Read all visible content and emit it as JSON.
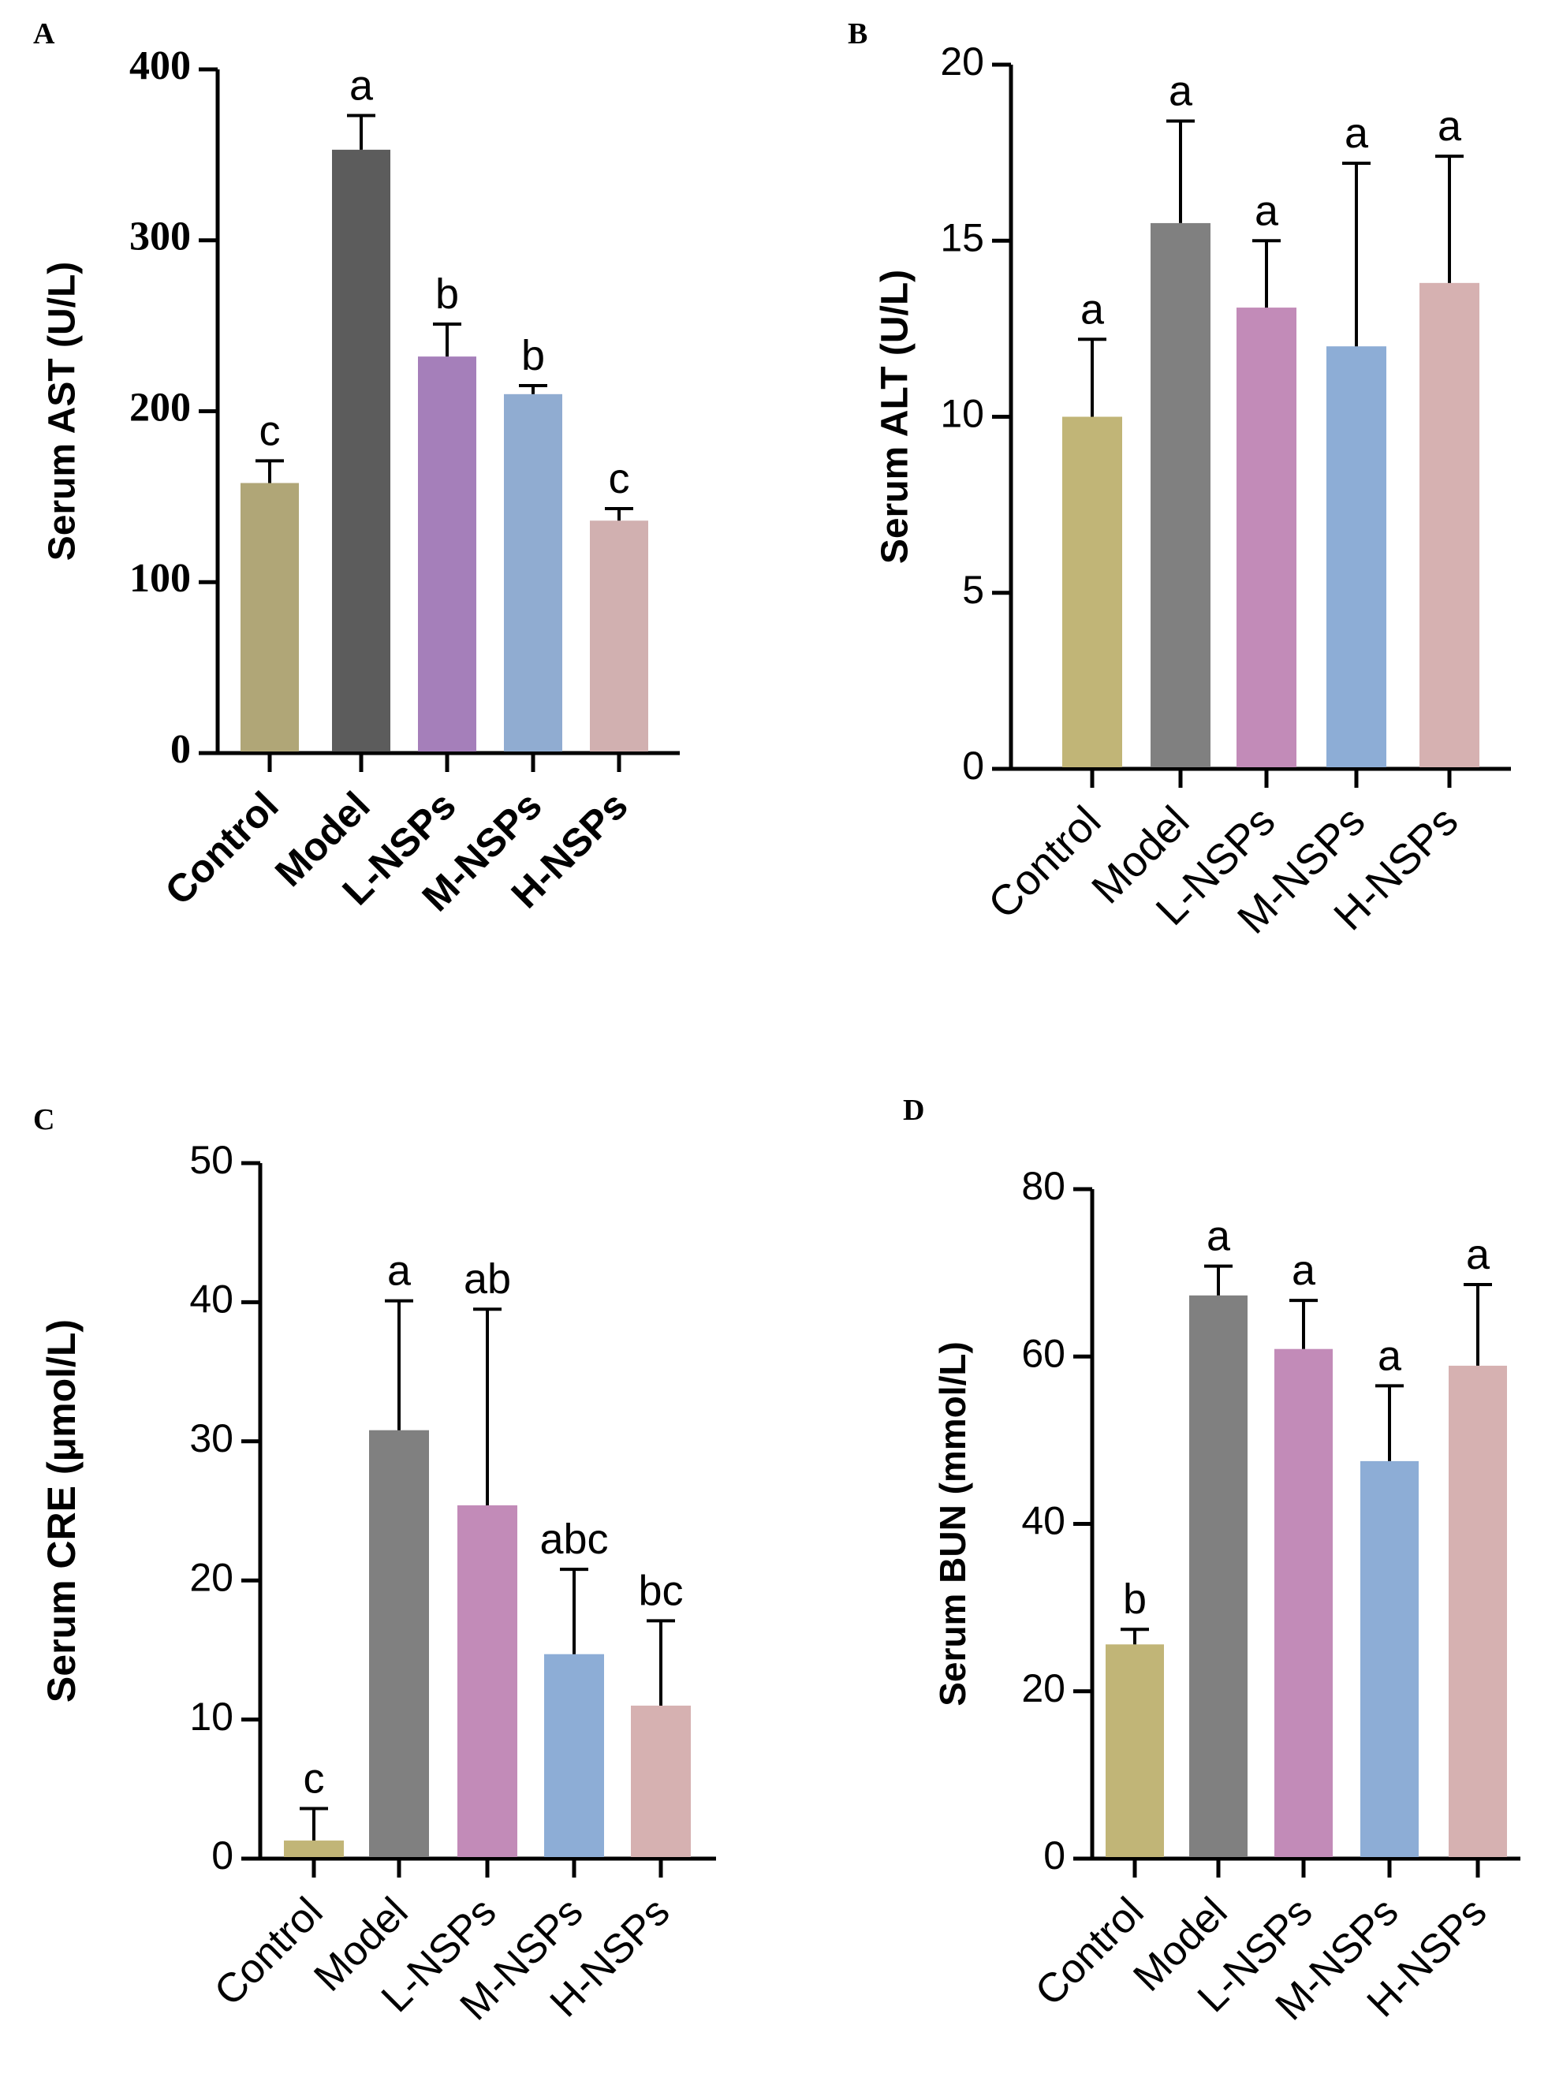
{
  "chart_data": [
    {
      "panel": "A",
      "type": "bar",
      "xlabel": "",
      "ylabel": "Serum AST (U/L)",
      "ylim": [
        0,
        400
      ],
      "yticks": [
        "0",
        "100",
        "200",
        "300",
        "400"
      ],
      "categories": [
        "Control",
        "Model",
        "L-NSPs",
        "M-NSPs",
        "H-NSPs"
      ],
      "values": [
        158,
        353,
        232,
        210,
        136
      ],
      "errors": [
        13,
        20,
        19,
        5,
        7
      ],
      "significance": [
        "c",
        "a",
        "b",
        "b",
        "c"
      ],
      "colors": [
        "#b0a677",
        "#5c5c5c",
        "#a57fba",
        "#90acd1",
        "#d1b0b0"
      ],
      "grid": false
    },
    {
      "panel": "B",
      "type": "bar",
      "xlabel": "",
      "ylabel": "Serum ALT (U/L)",
      "ylim": [
        0,
        20
      ],
      "yticks": [
        "0",
        "5",
        "10",
        "15",
        "20"
      ],
      "categories": [
        "Control",
        "Model",
        "L-NSPs",
        "M-NSPs",
        "H-NSPs"
      ],
      "values": [
        10.0,
        15.5,
        13.1,
        12.0,
        13.8
      ],
      "errors": [
        2.2,
        2.9,
        1.9,
        5.2,
        3.6
      ],
      "significance": [
        "a",
        "a",
        "a",
        "a",
        "a"
      ],
      "colors": [
        "#c1b577",
        "#808080",
        "#c28bb8",
        "#8dadd6",
        "#d6b1b1"
      ],
      "grid": false
    },
    {
      "panel": "C",
      "type": "bar",
      "xlabel": "",
      "ylabel": "Serum CRE (μmol/L)",
      "ylim": [
        0,
        50
      ],
      "yticks": [
        "0",
        "10",
        "20",
        "30",
        "40",
        "50"
      ],
      "categories": [
        "Control",
        "Model",
        "L-NSPs",
        "M-NSPs",
        "H-NSPs"
      ],
      "values": [
        1.3,
        30.8,
        25.4,
        14.7,
        11.0
      ],
      "errors": [
        2.3,
        9.3,
        14.1,
        6.1,
        6.1
      ],
      "significance": [
        "c",
        "a",
        "ab",
        "abc",
        "bc"
      ],
      "colors": [
        "#c1b577",
        "#808080",
        "#c28bb8",
        "#8dadd6",
        "#d6b1b1"
      ],
      "grid": false
    },
    {
      "panel": "D",
      "type": "bar",
      "xlabel": "",
      "ylabel": "Serum BUN (mmol/L)",
      "ylim": [
        0,
        80
      ],
      "yticks": [
        "0",
        "20",
        "40",
        "60",
        "80"
      ],
      "categories": [
        "Control",
        "Model",
        "L-NSPs",
        "M-NSPs",
        "H-NSPs"
      ],
      "values": [
        25.6,
        67.3,
        60.9,
        47.5,
        58.9
      ],
      "errors": [
        1.8,
        3.5,
        5.8,
        9.0,
        9.7
      ],
      "significance": [
        "b",
        "a",
        "a",
        "a",
        "a"
      ],
      "colors": [
        "#c1b577",
        "#808080",
        "#c28bb8",
        "#8dadd6",
        "#d6b1b1"
      ],
      "grid": false
    }
  ]
}
